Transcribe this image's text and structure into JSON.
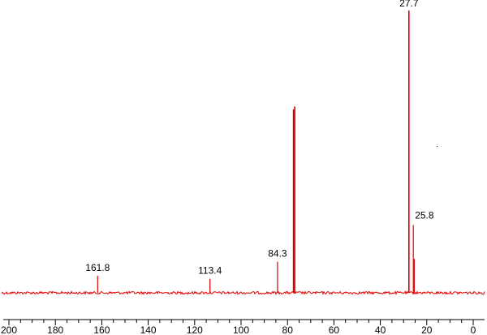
{
  "chart_data": {
    "type": "line",
    "title": "",
    "xlabel": "",
    "ylabel": "",
    "x_axis_reversed": true,
    "xlim": [
      200,
      0
    ],
    "x_ticks": [
      200,
      180,
      160,
      140,
      120,
      100,
      80,
      60,
      40,
      20,
      0
    ],
    "grid": false,
    "series": [
      {
        "color": "#e00000",
        "peaks": [
          {
            "x": 161.8,
            "intensity": 0.06,
            "label": "161.8"
          },
          {
            "x": 113.4,
            "intensity": 0.05,
            "label": "113.4"
          },
          {
            "x": 84.3,
            "intensity": 0.11,
            "label": "84.3"
          },
          {
            "x": 77.4,
            "intensity": 0.65,
            "label": ""
          },
          {
            "x": 76.9,
            "intensity": 0.66,
            "label": ""
          },
          {
            "x": 27.7,
            "intensity": 1.0,
            "label": "27.7"
          },
          {
            "x": 25.8,
            "intensity": 0.24,
            "label": "25.8"
          },
          {
            "x": 25.4,
            "intensity": 0.12,
            "label": ""
          }
        ]
      }
    ]
  }
}
